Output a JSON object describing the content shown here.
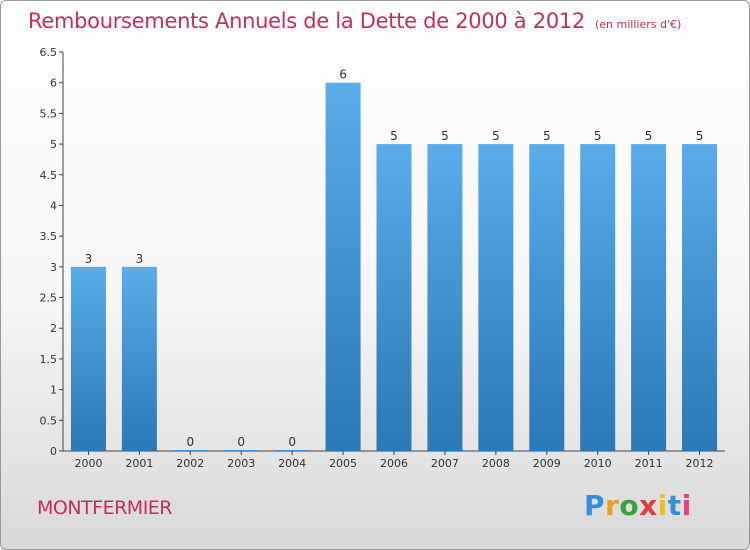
{
  "title": "Remboursements Annuels de la Dette de 2000 à 2012",
  "unit_label": "(en milliers d'€)",
  "commune": "MONTFERMIER",
  "logo_text": "Proxiti",
  "colors": {
    "title": "#c0305a",
    "bar_top": "#5aacea",
    "bar_bottom": "#2a78b5",
    "logo": [
      "#3a8ed8",
      "#e8a020",
      "#3aa040",
      "#d84040",
      "#e8c020",
      "#3a8ed8",
      "#e84080"
    ]
  },
  "chart_data": {
    "type": "bar",
    "title": "Remboursements Annuels de la Dette de 2000 à 2012",
    "subtitle": "(en milliers d'€)",
    "xlabel": "",
    "ylabel": "",
    "categories": [
      "2000",
      "2001",
      "2002",
      "2003",
      "2004",
      "2005",
      "2006",
      "2007",
      "2008",
      "2009",
      "2010",
      "2011",
      "2012"
    ],
    "values": [
      3,
      3,
      0,
      0,
      0,
      6,
      5,
      5,
      5,
      5,
      5,
      5,
      5
    ],
    "value_labels": [
      "3",
      "3",
      "0",
      "0",
      "0",
      "6",
      "5",
      "5",
      "5",
      "5",
      "5",
      "5",
      "5"
    ],
    "ylim": [
      0,
      6.5
    ],
    "yticks": [
      0,
      0.5,
      1,
      1.5,
      2,
      2.5,
      3,
      3.5,
      4,
      4.5,
      5,
      5.5,
      6,
      6.5
    ],
    "ytick_labels": [
      "0",
      "0.5",
      "1",
      "1.5",
      "2",
      "2.5",
      "3",
      "3.5",
      "4",
      "4.5",
      "5",
      "5.5",
      "6",
      "6.5"
    ],
    "grid": false,
    "legend": "none"
  }
}
